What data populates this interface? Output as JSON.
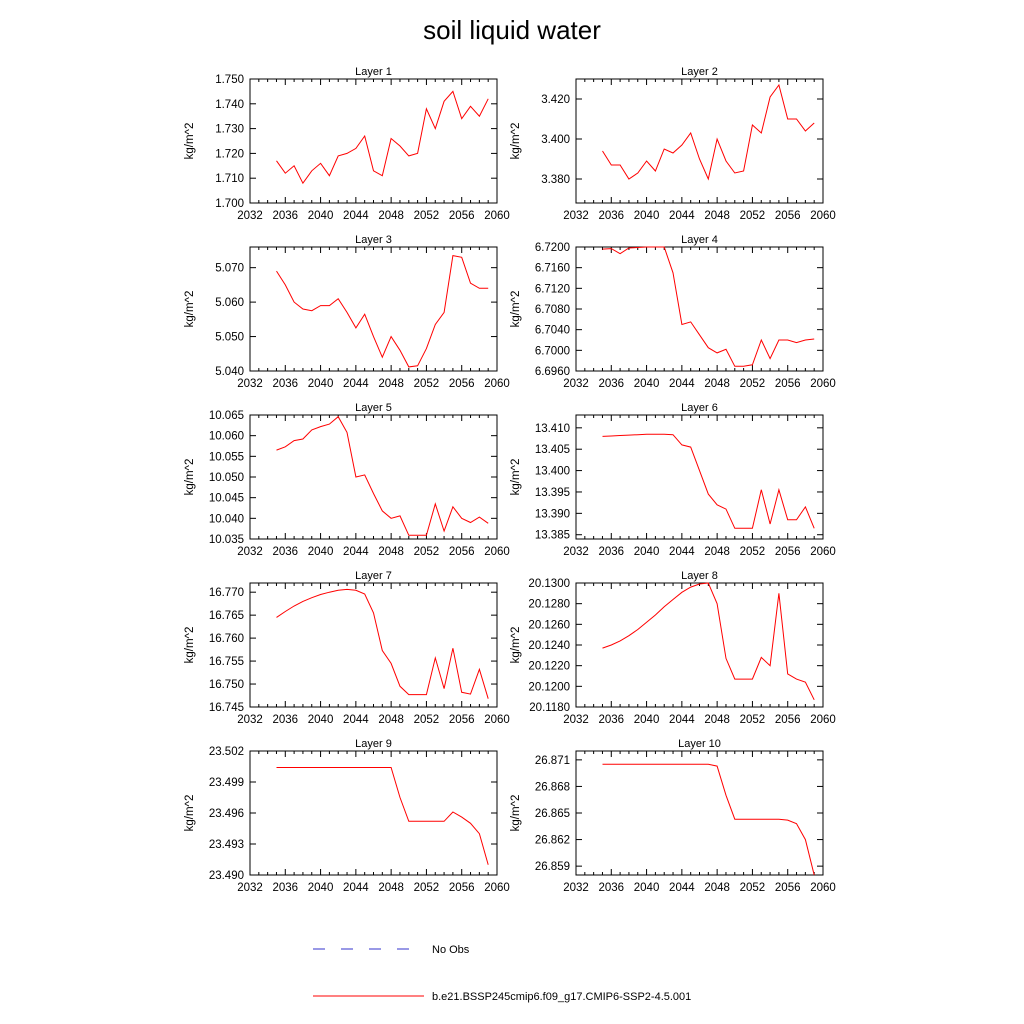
{
  "figure": {
    "title": "soil liquid water"
  },
  "legend": {
    "obs_label": "No Obs",
    "model_label": "b.e21.BSSP245cmip6.f09_g17.CMIP6-SSP2-4.5.001",
    "obs_color": "#3333cc",
    "model_color": "#ff0000"
  },
  "chart_data": [
    {
      "type": "line",
      "title": "Layer 1",
      "ylabel": "kg/m^2",
      "xlim": [
        2032,
        2060
      ],
      "ylim": [
        1.7,
        1.75
      ],
      "xticks": [
        "2032",
        "2036",
        "2040",
        "2044",
        "2048",
        "2052",
        "2056",
        "2060"
      ],
      "yticks": [
        "1.700",
        "1.710",
        "1.720",
        "1.730",
        "1.740",
        "1.750"
      ],
      "x": [
        2035,
        2036,
        2037,
        2038,
        2039,
        2040,
        2041,
        2042,
        2043,
        2044,
        2045,
        2046,
        2047,
        2048,
        2049,
        2050,
        2051,
        2052,
        2053,
        2054,
        2055,
        2056,
        2057,
        2058,
        2059
      ],
      "series": [
        {
          "values": [
            1.717,
            1.712,
            1.715,
            1.708,
            1.713,
            1.716,
            1.711,
            1.719,
            1.72,
            1.722,
            1.727,
            1.713,
            1.711,
            1.726,
            1.723,
            1.719,
            1.72,
            1.738,
            1.73,
            1.741,
            1.745,
            1.734,
            1.739,
            1.735,
            1.742
          ]
        }
      ]
    },
    {
      "type": "line",
      "title": "Layer 2",
      "ylabel": "kg/m^2",
      "xlim": [
        2032,
        2060
      ],
      "ylim": [
        3.368,
        3.43
      ],
      "xticks": [
        "2032",
        "2036",
        "2040",
        "2044",
        "2048",
        "2052",
        "2056",
        "2060"
      ],
      "yticks": [
        "3.380",
        "3.400",
        "3.420"
      ],
      "x": [
        2035,
        2036,
        2037,
        2038,
        2039,
        2040,
        2041,
        2042,
        2043,
        2044,
        2045,
        2046,
        2047,
        2048,
        2049,
        2050,
        2051,
        2052,
        2053,
        2054,
        2055,
        2056,
        2057,
        2058,
        2059
      ],
      "series": [
        {
          "values": [
            3.394,
            3.387,
            3.387,
            3.38,
            3.383,
            3.389,
            3.384,
            3.395,
            3.393,
            3.397,
            3.403,
            3.39,
            3.38,
            3.4,
            3.389,
            3.383,
            3.384,
            3.407,
            3.403,
            3.421,
            3.427,
            3.41,
            3.41,
            3.404,
            3.408
          ]
        }
      ]
    },
    {
      "type": "line",
      "title": "Layer 3",
      "ylabel": "kg/m^2",
      "xlim": [
        2032,
        2060
      ],
      "ylim": [
        5.04,
        5.076
      ],
      "xticks": [
        "2032",
        "2036",
        "2040",
        "2044",
        "2048",
        "2052",
        "2056",
        "2060"
      ],
      "yticks": [
        "5.040",
        "5.050",
        "5.060",
        "5.070"
      ],
      "x": [
        2035,
        2036,
        2037,
        2038,
        2039,
        2040,
        2041,
        2042,
        2043,
        2044,
        2045,
        2046,
        2047,
        2048,
        2049,
        2050,
        2051,
        2052,
        2053,
        2054,
        2055,
        2056,
        2057,
        2058,
        2059
      ],
      "series": [
        {
          "values": [
            5.069,
            5.065,
            5.06,
            5.058,
            5.0575,
            5.059,
            5.059,
            5.061,
            5.057,
            5.0525,
            5.0565,
            5.05,
            5.044,
            5.05,
            5.046,
            5.0412,
            5.0415,
            5.0465,
            5.0535,
            5.057,
            5.0735,
            5.073,
            5.0655,
            5.064,
            5.064
          ]
        }
      ]
    },
    {
      "type": "line",
      "title": "Layer 4",
      "ylabel": "kg/m^2",
      "xlim": [
        2032,
        2060
      ],
      "ylim": [
        6.696,
        6.72
      ],
      "xticks": [
        "2032",
        "2036",
        "2040",
        "2044",
        "2048",
        "2052",
        "2056",
        "2060"
      ],
      "yticks": [
        "6.6960",
        "6.7000",
        "6.7040",
        "6.7080",
        "6.7120",
        "6.7160",
        "6.7200"
      ],
      "x": [
        2035,
        2036,
        2037,
        2038,
        2039,
        2040,
        2041,
        2042,
        2043,
        2044,
        2045,
        2046,
        2047,
        2048,
        2049,
        2050,
        2051,
        2052,
        2053,
        2054,
        2055,
        2056,
        2057,
        2058,
        2059
      ],
      "series": [
        {
          "values": [
            6.7196,
            6.7197,
            6.7187,
            6.7198,
            6.7199,
            6.72,
            6.72,
            6.72,
            6.715,
            6.705,
            6.7055,
            6.703,
            6.7005,
            6.6995,
            6.7002,
            6.6969,
            6.6969,
            6.6972,
            6.702,
            6.6984,
            6.702,
            6.702,
            6.7015,
            6.702,
            6.7022
          ]
        }
      ]
    },
    {
      "type": "line",
      "title": "Layer 5",
      "ylabel": "kg/m^2",
      "xlim": [
        2032,
        2060
      ],
      "ylim": [
        10.035,
        10.065
      ],
      "xticks": [
        "2032",
        "2036",
        "2040",
        "2044",
        "2048",
        "2052",
        "2056",
        "2060"
      ],
      "yticks": [
        "10.035",
        "10.040",
        "10.045",
        "10.050",
        "10.055",
        "10.060",
        "10.065"
      ],
      "x": [
        2035,
        2036,
        2037,
        2038,
        2039,
        2040,
        2041,
        2042,
        2043,
        2044,
        2045,
        2046,
        2047,
        2048,
        2049,
        2050,
        2051,
        2052,
        2053,
        2054,
        2055,
        2056,
        2057,
        2058,
        2059
      ],
      "series": [
        {
          "values": [
            10.0565,
            10.0573,
            10.0588,
            10.0592,
            10.0614,
            10.0622,
            10.0628,
            10.0646,
            10.0608,
            10.05,
            10.0505,
            10.046,
            10.0418,
            10.04,
            10.0406,
            10.0359,
            10.0359,
            10.0359,
            10.0435,
            10.0369,
            10.0428,
            10.04,
            10.039,
            10.0403,
            10.0388
          ]
        }
      ]
    },
    {
      "type": "line",
      "title": "Layer 6",
      "ylabel": "kg/m^2",
      "xlim": [
        2032,
        2060
      ],
      "ylim": [
        13.384,
        13.413
      ],
      "xticks": [
        "2032",
        "2036",
        "2040",
        "2044",
        "2048",
        "2052",
        "2056",
        "2060"
      ],
      "yticks": [
        "13.385",
        "13.390",
        "13.395",
        "13.400",
        "13.405",
        "13.410"
      ],
      "x": [
        2035,
        2036,
        2037,
        2038,
        2039,
        2040,
        2041,
        2042,
        2043,
        2044,
        2045,
        2046,
        2047,
        2048,
        2049,
        2050,
        2051,
        2052,
        2053,
        2054,
        2055,
        2056,
        2057,
        2058,
        2059
      ],
      "series": [
        {
          "values": [
            13.408,
            13.4081,
            13.4082,
            13.4083,
            13.4084,
            13.4085,
            13.4085,
            13.4085,
            13.4084,
            13.406,
            13.4055,
            13.4,
            13.3945,
            13.392,
            13.391,
            13.3865,
            13.3865,
            13.3865,
            13.3955,
            13.3875,
            13.3955,
            13.3885,
            13.3885,
            13.3915,
            13.3865
          ]
        }
      ]
    },
    {
      "type": "line",
      "title": "Layer 7",
      "ylabel": "kg/m^2",
      "xlim": [
        2032,
        2060
      ],
      "ylim": [
        16.745,
        16.772
      ],
      "xticks": [
        "2032",
        "2036",
        "2040",
        "2044",
        "2048",
        "2052",
        "2056",
        "2060"
      ],
      "yticks": [
        "16.745",
        "16.750",
        "16.755",
        "16.760",
        "16.765",
        "16.770"
      ],
      "x": [
        2035,
        2036,
        2037,
        2038,
        2039,
        2040,
        2041,
        2042,
        2043,
        2044,
        2045,
        2046,
        2047,
        2048,
        2049,
        2050,
        2051,
        2052,
        2053,
        2054,
        2055,
        2056,
        2057,
        2058,
        2059
      ],
      "series": [
        {
          "values": [
            16.7645,
            16.7658,
            16.767,
            16.768,
            16.7688,
            16.7695,
            16.77,
            16.7704,
            16.7706,
            16.7704,
            16.7696,
            16.7655,
            16.7573,
            16.7545,
            16.7495,
            16.7477,
            16.7477,
            16.7477,
            16.7557,
            16.749,
            16.7578,
            16.7482,
            16.7478,
            16.7532,
            16.7468
          ]
        }
      ]
    },
    {
      "type": "line",
      "title": "Layer 8",
      "ylabel": "kg/m^2",
      "xlim": [
        2032,
        2060
      ],
      "ylim": [
        20.118,
        20.13
      ],
      "xticks": [
        "2032",
        "2036",
        "2040",
        "2044",
        "2048",
        "2052",
        "2056",
        "2060"
      ],
      "yticks": [
        "20.1180",
        "20.1200",
        "20.1220",
        "20.1240",
        "20.1260",
        "20.1280",
        "20.1300"
      ],
      "x": [
        2035,
        2036,
        2037,
        2038,
        2039,
        2040,
        2041,
        2042,
        2043,
        2044,
        2045,
        2046,
        2047,
        2048,
        2049,
        2050,
        2051,
        2052,
        2053,
        2054,
        2055,
        2056,
        2057,
        2058,
        2059
      ],
      "series": [
        {
          "values": [
            20.1237,
            20.124,
            20.1244,
            20.1249,
            20.1255,
            20.1262,
            20.1269,
            20.1277,
            20.1284,
            20.1291,
            20.1296,
            20.1299,
            20.13,
            20.128,
            20.1227,
            20.1207,
            20.1207,
            20.1207,
            20.1228,
            20.122,
            20.129,
            20.1212,
            20.1207,
            20.1204,
            20.1187
          ]
        }
      ]
    },
    {
      "type": "line",
      "title": "Layer 9",
      "ylabel": "kg/m^2",
      "xlim": [
        2032,
        2060
      ],
      "ylim": [
        23.49,
        23.502
      ],
      "xticks": [
        "2032",
        "2036",
        "2040",
        "2044",
        "2048",
        "2052",
        "2056",
        "2060"
      ],
      "yticks": [
        "23.490",
        "23.493",
        "23.496",
        "23.499",
        "23.502"
      ],
      "x": [
        2035,
        2036,
        2037,
        2038,
        2039,
        2040,
        2041,
        2042,
        2043,
        2044,
        2045,
        2046,
        2047,
        2048,
        2049,
        2050,
        2051,
        2052,
        2053,
        2054,
        2055,
        2056,
        2057,
        2058,
        2059
      ],
      "series": [
        {
          "values": [
            23.5004,
            23.5004,
            23.5004,
            23.5004,
            23.5004,
            23.5004,
            23.5004,
            23.5004,
            23.5004,
            23.5004,
            23.5004,
            23.5004,
            23.5004,
            23.5004,
            23.4975,
            23.4952,
            23.4952,
            23.4952,
            23.4952,
            23.4952,
            23.4961,
            23.4956,
            23.495,
            23.494,
            23.491
          ]
        }
      ]
    },
    {
      "type": "line",
      "title": "Layer 10",
      "ylabel": "kg/m^2",
      "xlim": [
        2032,
        2060
      ],
      "ylim": [
        26.858,
        26.872
      ],
      "xticks": [
        "2032",
        "2036",
        "2040",
        "2044",
        "2048",
        "2052",
        "2056",
        "2060"
      ],
      "yticks": [
        "26.859",
        "26.862",
        "26.865",
        "26.868",
        "26.871"
      ],
      "x": [
        2035,
        2036,
        2037,
        2038,
        2039,
        2040,
        2041,
        2042,
        2043,
        2044,
        2045,
        2046,
        2047,
        2048,
        2049,
        2050,
        2051,
        2052,
        2053,
        2054,
        2055,
        2056,
        2057,
        2058,
        2059
      ],
      "series": [
        {
          "values": [
            26.8705,
            26.8705,
            26.8705,
            26.8705,
            26.8705,
            26.8705,
            26.8705,
            26.8705,
            26.8705,
            26.8705,
            26.8705,
            26.8705,
            26.8705,
            26.8703,
            26.867,
            26.8643,
            26.8643,
            26.8643,
            26.8643,
            26.8643,
            26.8643,
            26.8642,
            26.8638,
            26.862,
            26.858
          ]
        }
      ]
    }
  ]
}
